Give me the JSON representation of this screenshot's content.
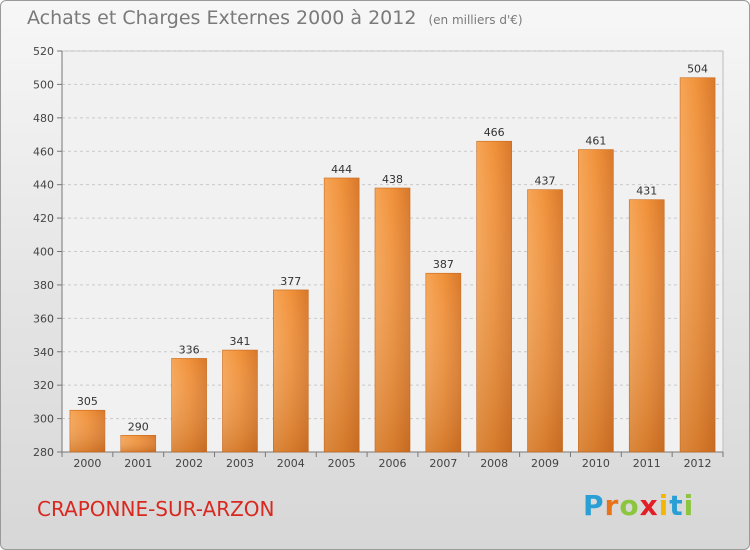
{
  "header": {
    "title": "Achats et Charges Externes 2000 à 2012",
    "unit": "(en milliers d'€)"
  },
  "footer": {
    "city": "CRAPONNE-SUR-ARZON",
    "logo": {
      "letters": [
        "P",
        "r",
        "o",
        "x",
        "i",
        "t",
        "i"
      ],
      "colors": [
        "#2a9fd6",
        "#e8731a",
        "#8cc63f",
        "#e21f26",
        "#f2b705",
        "#2a9fd6",
        "#8cc63f"
      ]
    }
  },
  "chart_data": {
    "type": "bar",
    "title": "Achats et Charges Externes 2000 à 2012",
    "categories": [
      "2000",
      "2001",
      "2002",
      "2003",
      "2004",
      "2005",
      "2006",
      "2007",
      "2008",
      "2009",
      "2010",
      "2011",
      "2012"
    ],
    "values": [
      305,
      290,
      336,
      341,
      377,
      444,
      438,
      387,
      466,
      437,
      461,
      431,
      504
    ],
    "ylim": [
      280,
      520
    ],
    "yticks": [
      280,
      300,
      320,
      340,
      360,
      380,
      400,
      420,
      440,
      460,
      480,
      500,
      520
    ],
    "grid": true,
    "bar_color": "#f0913a",
    "bar_color_dark": "#c96a1e"
  }
}
